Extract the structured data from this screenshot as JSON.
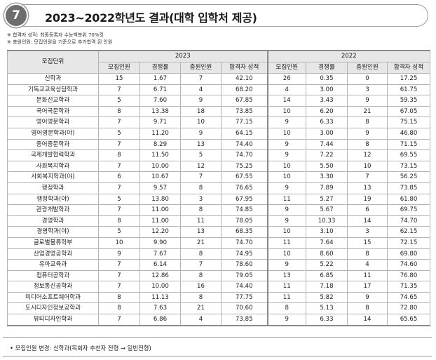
{
  "header": {
    "badge": "7",
    "title": "2023~2022학년도 결과(대학 입학처 제공)"
  },
  "notes": [
    "※ 합격자 성적: 최종등록자 수능백분위 70%컷",
    "※ 충원인원: 모집인원을 기준으로 추가합격 된 인원"
  ],
  "table": {
    "unit_header": "모집단위",
    "year_headers": [
      "2023",
      "2022"
    ],
    "sub_headers": [
      "모집인원",
      "경쟁률",
      "충원인원",
      "합격자 성적",
      "모집인원",
      "경쟁률",
      "충원인원",
      "합격자 성적"
    ],
    "rows": [
      [
        "신학과",
        "15",
        "1.67",
        "7",
        "42.10",
        "26",
        "0.35",
        "0",
        "17.25"
      ],
      [
        "기독교교육상담학과",
        "7",
        "6.71",
        "4",
        "68.20",
        "4",
        "3.00",
        "3",
        "61.75"
      ],
      [
        "문화선교학과",
        "5",
        "7.60",
        "9",
        "67.85",
        "14",
        "3.43",
        "9",
        "59.35"
      ],
      [
        "국어국문학과",
        "8",
        "13.38",
        "18",
        "73.85",
        "10",
        "6.20",
        "21",
        "67.05"
      ],
      [
        "영어영문학과",
        "7",
        "9.71",
        "10",
        "77.15",
        "9",
        "6.33",
        "8",
        "75.15"
      ],
      [
        "영어영문학과(야)",
        "5",
        "11.20",
        "9",
        "64.15",
        "10",
        "3.00",
        "9",
        "46.80"
      ],
      [
        "중어중문학과",
        "7",
        "8.29",
        "13",
        "74.40",
        "9",
        "7.44",
        "8",
        "71.15"
      ],
      [
        "국제개발협력학과",
        "8",
        "11.50",
        "5",
        "74.70",
        "9",
        "7.22",
        "12",
        "69.55"
      ],
      [
        "사회복지학과",
        "7",
        "10.00",
        "12",
        "75.25",
        "10",
        "5.50",
        "10",
        "73.15"
      ],
      [
        "사회복지학과(야)",
        "6",
        "10.67",
        "7",
        "67.55",
        "10",
        "3.30",
        "7",
        "56.25"
      ],
      [
        "행정학과",
        "7",
        "9.57",
        "8",
        "76.65",
        "9",
        "7.89",
        "13",
        "73.85"
      ],
      [
        "행정학과(야)",
        "5",
        "13.80",
        "3",
        "67.95",
        "11",
        "5.27",
        "19",
        "61.80"
      ],
      [
        "관광개발학과",
        "7",
        "11.00",
        "8",
        "74.85",
        "9",
        "5.67",
        "6",
        "69.75"
      ],
      [
        "경영학과",
        "8",
        "11.00",
        "11",
        "78.05",
        "9",
        "10.33",
        "14",
        "74.70"
      ],
      [
        "경영학과(야)",
        "5",
        "12.20",
        "13",
        "68.35",
        "10",
        "3.10",
        "3",
        "62.15"
      ],
      [
        "글로벌물류학부",
        "10",
        "9.90",
        "21",
        "74.70",
        "11",
        "7.64",
        "15",
        "72.15"
      ],
      [
        "산업경영공학과",
        "9",
        "7.67",
        "8",
        "74.95",
        "10",
        "8.60",
        "8",
        "69.80"
      ],
      [
        "유아교육과",
        "7",
        "6.14",
        "7",
        "78.60",
        "9",
        "5.22",
        "4",
        "74.60"
      ],
      [
        "컴퓨터공학과",
        "7",
        "12.86",
        "8",
        "79.05",
        "13",
        "6.85",
        "11",
        "76.80"
      ],
      [
        "정보통신공학과",
        "7",
        "10.00",
        "16",
        "74.40",
        "11",
        "7.18",
        "17",
        "71.35"
      ],
      [
        "미디어소프트웨어학과",
        "8",
        "11.13",
        "8",
        "77.75",
        "11",
        "5.82",
        "9",
        "74.65"
      ],
      [
        "도시디자인정보공학과",
        "8",
        "7.63",
        "21",
        "70.60",
        "8",
        "5.13",
        "8",
        "72.80"
      ],
      [
        "뷰티디자인학과",
        "7",
        "6.86",
        "4",
        "73.85",
        "9",
        "6.33",
        "14",
        "65.65"
      ]
    ]
  },
  "footer": {
    "note": "• 모집인원 변경: 신학과(목회자 추천자 전형 → 일반전형)"
  }
}
